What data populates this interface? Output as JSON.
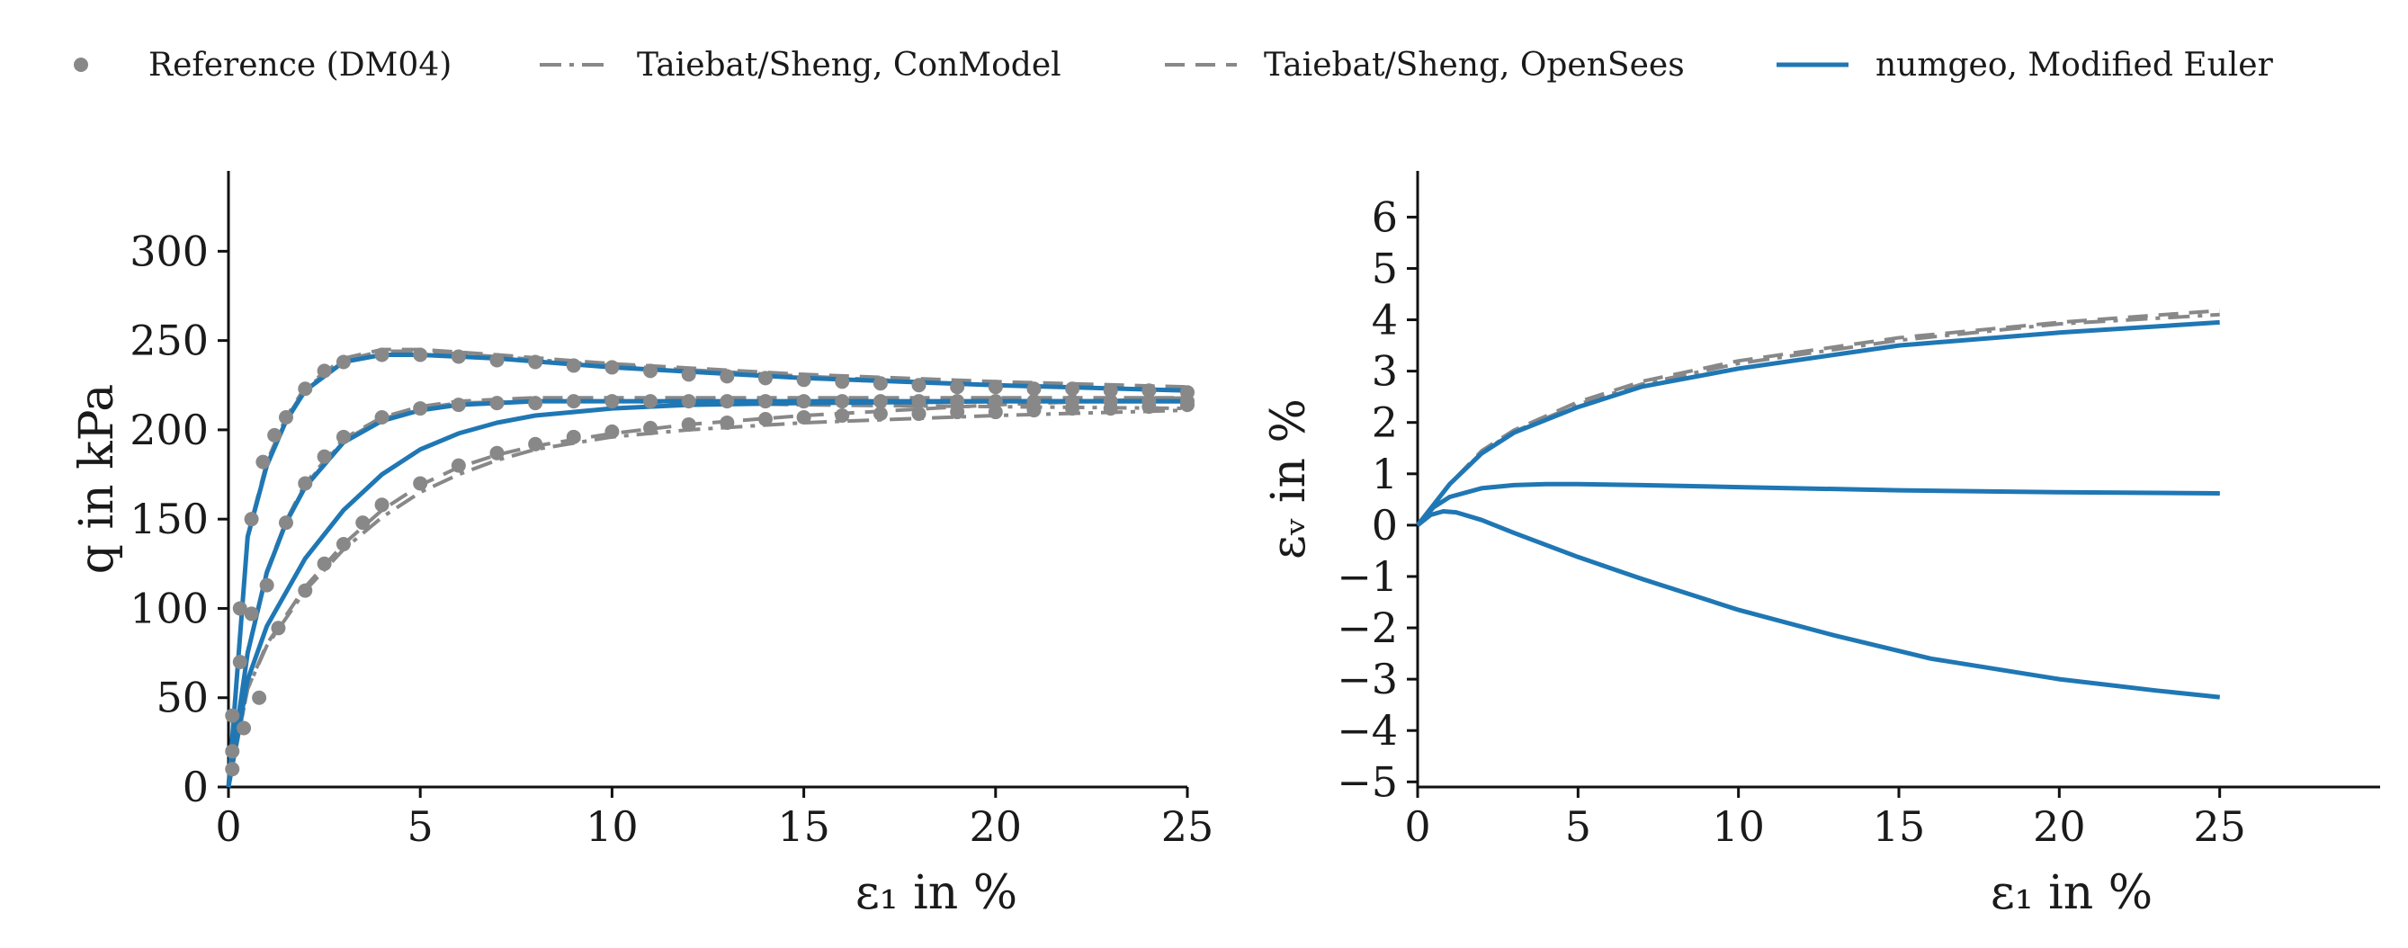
{
  "legend": {
    "items": [
      {
        "label": "Reference (DM04)",
        "style": "dots"
      },
      {
        "label": "Taiebat/Sheng, ConModel",
        "style": "dashdot"
      },
      {
        "label": "Taiebat/Sheng, OpenSees",
        "style": "dashed"
      },
      {
        "label": "numgeo, Modified Euler",
        "style": "solid"
      }
    ],
    "placement": "top"
  },
  "colors": {
    "gray": "#888888",
    "blue": "#1f77b4",
    "axis": "#111111"
  },
  "chart_data": [
    {
      "type": "line",
      "xlabel": "ε₁ in %",
      "ylabel": "q in kPa",
      "xlim": [
        0,
        25
      ],
      "ylim": [
        0,
        345
      ],
      "xticks": [
        "0",
        "5",
        "10",
        "15",
        "20",
        "25"
      ],
      "yticks": [
        "0",
        "50",
        "100",
        "150",
        "200",
        "250",
        "300"
      ],
      "grid": false,
      "series": [
        {
          "group": "dense",
          "style": "solid",
          "x": [
            0,
            0.5,
            1,
            1.5,
            2,
            3,
            4,
            5,
            7,
            10,
            15,
            20,
            25
          ],
          "y": [
            0,
            140,
            180,
            205,
            222,
            238,
            242,
            242,
            240,
            235,
            229,
            225,
            222
          ]
        },
        {
          "group": "dense",
          "style": "dashed",
          "x": [
            0,
            0.5,
            1,
            1.5,
            2,
            3,
            4,
            5,
            7,
            10,
            15,
            20,
            25
          ],
          "y": [
            0,
            141,
            182,
            207,
            224,
            240,
            245,
            245,
            242,
            237,
            231,
            227,
            224
          ]
        },
        {
          "group": "dense",
          "style": "dashdot",
          "x": [
            0,
            0.5,
            1,
            1.5,
            2,
            3,
            4,
            5,
            7,
            10,
            15,
            20,
            25
          ],
          "y": [
            0,
            140,
            181,
            206,
            223,
            239,
            244,
            244,
            241,
            236,
            230,
            225,
            222
          ]
        },
        {
          "group": "dense",
          "style": "dots",
          "x": [
            0.1,
            0.3,
            0.6,
            0.9,
            1.2,
            1.5,
            2,
            2.5,
            3,
            4,
            5,
            6,
            7,
            8,
            9,
            10,
            11,
            12,
            13,
            14,
            15,
            16,
            17,
            18,
            19,
            20,
            21,
            22,
            23,
            24,
            25
          ],
          "y": [
            40,
            100,
            150,
            182,
            197,
            207,
            223,
            233,
            238,
            242,
            242,
            241,
            239,
            238,
            236,
            235,
            233,
            231,
            230,
            229,
            228,
            227,
            226,
            225,
            224,
            224,
            223,
            223,
            222,
            222,
            221
          ]
        },
        {
          "group": "medium",
          "style": "solid",
          "x": [
            0,
            0.5,
            1,
            1.5,
            2,
            3,
            4,
            5,
            6,
            8,
            10,
            15,
            20,
            25
          ],
          "y": [
            0,
            75,
            120,
            148,
            168,
            193,
            205,
            211,
            214,
            216,
            216,
            216,
            216,
            216
          ]
        },
        {
          "group": "medium",
          "style": "dashed",
          "x": [
            0,
            0.5,
            1,
            1.5,
            2,
            3,
            4,
            5,
            6,
            8,
            10,
            15,
            20,
            25
          ],
          "y": [
            0,
            76,
            121,
            149,
            170,
            195,
            207,
            213,
            216,
            218,
            218,
            218,
            218,
            218
          ]
        },
        {
          "group": "medium",
          "style": "dashdot",
          "x": [
            0,
            0.5,
            1,
            1.5,
            2,
            3,
            4,
            5,
            6,
            8,
            10,
            15,
            20,
            25
          ],
          "y": [
            0,
            75,
            120,
            148,
            169,
            194,
            206,
            212,
            215,
            216,
            216,
            214,
            213,
            212
          ]
        },
        {
          "group": "medium",
          "style": "dots",
          "x": [
            0.1,
            0.3,
            0.6,
            1,
            1.5,
            2,
            2.5,
            3,
            4,
            5,
            6,
            7,
            8,
            9,
            10,
            11,
            12,
            13,
            14,
            15,
            16,
            17,
            18,
            19,
            20,
            21,
            22,
            23,
            24,
            25
          ],
          "y": [
            20,
            70,
            97,
            113,
            148,
            170,
            185,
            196,
            207,
            212,
            214,
            215,
            215,
            216,
            216,
            216,
            216,
            216,
            216,
            216,
            216,
            216,
            216,
            216,
            216,
            216,
            216,
            216,
            216,
            216
          ]
        },
        {
          "group": "loose",
          "style": "solid",
          "x": [
            0,
            0.5,
            1,
            2,
            3,
            4,
            5,
            6,
            7,
            8,
            10,
            12,
            15,
            20,
            25
          ],
          "y": [
            0,
            60,
            90,
            128,
            155,
            175,
            189,
            198,
            204,
            208,
            212,
            214,
            215,
            216,
            216
          ]
        },
        {
          "group": "loose",
          "style": "dashed",
          "x": [
            0,
            0.5,
            1,
            2,
            3,
            4,
            5,
            6,
            7,
            8,
            10,
            12,
            15,
            20,
            25
          ],
          "y": [
            0,
            55,
            80,
            112,
            136,
            155,
            169,
            179,
            186,
            191,
            198,
            203,
            208,
            214,
            218
          ]
        },
        {
          "group": "loose",
          "style": "dashdot",
          "x": [
            0,
            0.5,
            1,
            2,
            3,
            4,
            5,
            6,
            7,
            8,
            10,
            12,
            15,
            20,
            25
          ],
          "y": [
            0,
            55,
            79,
            110,
            133,
            151,
            165,
            175,
            183,
            189,
            196,
            200,
            204,
            208,
            211
          ]
        },
        {
          "group": "loose",
          "style": "dots",
          "x": [
            0.1,
            0.4,
            0.8,
            1.3,
            2,
            2.5,
            3,
            3.5,
            4,
            5,
            6,
            7,
            8,
            9,
            10,
            11,
            12,
            13,
            14,
            15,
            16,
            17,
            18,
            19,
            20,
            21,
            22,
            23,
            24,
            25
          ],
          "y": [
            10,
            33,
            50,
            89,
            110,
            125,
            136,
            148,
            158,
            170,
            180,
            187,
            192,
            196,
            199,
            201,
            203,
            204,
            206,
            207,
            208,
            209,
            209,
            210,
            210,
            211,
            212,
            212,
            213,
            214
          ]
        }
      ]
    },
    {
      "type": "line",
      "xlabel": "ε₁ in %",
      "ylabel": "εᵥ in %",
      "xlim": [
        0,
        30
      ],
      "ylim": [
        -5.1,
        6.9
      ],
      "xticks": [
        "0",
        "5",
        "10",
        "15",
        "20",
        "25"
      ],
      "yticks": [
        "−5",
        "−4",
        "−3",
        "−2",
        "−1",
        "0",
        "1",
        "2",
        "3",
        "4",
        "5",
        "6"
      ],
      "grid": false,
      "series": [
        {
          "group": "loose",
          "style": "solid",
          "x": [
            0,
            1,
            2,
            3,
            5,
            7,
            10,
            15,
            20,
            25
          ],
          "y": [
            0,
            0.8,
            1.4,
            1.8,
            2.3,
            2.7,
            3.05,
            3.5,
            3.75,
            3.95
          ]
        },
        {
          "group": "loose",
          "style": "dashed",
          "x": [
            0,
            1,
            2,
            3,
            5,
            7,
            10,
            15,
            20,
            25
          ],
          "y": [
            0,
            0.8,
            1.45,
            1.85,
            2.4,
            2.8,
            3.2,
            3.65,
            3.95,
            4.18
          ]
        },
        {
          "group": "loose",
          "style": "dashdot",
          "x": [
            0,
            1,
            2,
            3,
            5,
            7,
            10,
            15,
            20,
            25
          ],
          "y": [
            0,
            0.8,
            1.42,
            1.82,
            2.35,
            2.75,
            3.15,
            3.6,
            3.92,
            4.1
          ]
        },
        {
          "group": "medium",
          "style": "solid",
          "x": [
            0,
            0.5,
            1,
            2,
            3,
            4,
            5,
            7,
            10,
            15,
            20,
            25
          ],
          "y": [
            0,
            0.35,
            0.55,
            0.72,
            0.78,
            0.8,
            0.8,
            0.78,
            0.74,
            0.68,
            0.64,
            0.62
          ]
        },
        {
          "group": "medium",
          "style": "dashed",
          "x": [
            0,
            0.5,
            1,
            2,
            3,
            4,
            5,
            7,
            10,
            15,
            20,
            25
          ],
          "y": [
            0,
            0.35,
            0.55,
            0.72,
            0.78,
            0.8,
            0.8,
            0.78,
            0.74,
            0.68,
            0.64,
            0.62
          ]
        },
        {
          "group": "medium",
          "style": "dashdot",
          "x": [
            0,
            0.5,
            1,
            2,
            3,
            4,
            5,
            7,
            10,
            15,
            20,
            25
          ],
          "y": [
            0,
            0.35,
            0.55,
            0.72,
            0.78,
            0.8,
            0.8,
            0.78,
            0.74,
            0.68,
            0.64,
            0.62
          ]
        },
        {
          "group": "dense",
          "style": "solid",
          "x": [
            0,
            0.4,
            0.8,
            1.2,
            2,
            3,
            5,
            7,
            10,
            13,
            16,
            20,
            23,
            25
          ],
          "y": [
            0,
            0.2,
            0.27,
            0.25,
            0.1,
            -0.15,
            -0.62,
            -1.05,
            -1.65,
            -2.15,
            -2.6,
            -3.0,
            -3.22,
            -3.35
          ]
        },
        {
          "group": "dense",
          "style": "dashed",
          "x": [
            0,
            0.4,
            0.8,
            1.2,
            2,
            3,
            5,
            7,
            10,
            13,
            16,
            20,
            23,
            25
          ],
          "y": [
            0,
            0.2,
            0.27,
            0.25,
            0.1,
            -0.15,
            -0.62,
            -1.05,
            -1.65,
            -2.15,
            -2.6,
            -3.0,
            -3.22,
            -3.35
          ]
        },
        {
          "group": "dense",
          "style": "dashdot",
          "x": [
            0,
            0.4,
            0.8,
            1.2,
            2,
            3,
            5,
            7,
            10,
            13,
            16,
            20,
            23,
            25
          ],
          "y": [
            0,
            0.2,
            0.27,
            0.25,
            0.1,
            -0.15,
            -0.62,
            -1.05,
            -1.65,
            -2.15,
            -2.6,
            -3.0,
            -3.22,
            -3.35
          ]
        }
      ]
    }
  ]
}
